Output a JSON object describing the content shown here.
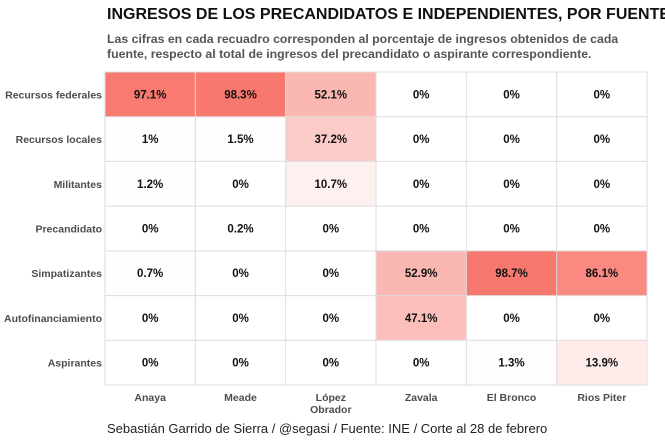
{
  "chart_data": {
    "type": "heatmap",
    "title": "INGRESOS DE LOS PRECANDIDATOS E INDEPENDIENTES, POR FUENTE",
    "subtitle": "Las cifras en cada recuadro corresponden al porcentaje de ingresos obtenidos de cada fuente, respecto al total de ingresos del precandidato o aspirante correspondiente.",
    "caption": "Sebastián Garrido de Sierra / @segasi / Fuente: INE / Corte al 28 de febrero",
    "xlabel": "",
    "ylabel": "",
    "x_categories": [
      [
        "Anaya"
      ],
      [
        "Meade"
      ],
      [
        "López",
        "Obrador"
      ],
      [
        "Zavala"
      ],
      [
        "El Bronco"
      ],
      [
        "Rios Piter"
      ]
    ],
    "y_categories": [
      "Recursos federales",
      "Recursos locales",
      "Militantes",
      "Precandidato",
      "Simpatizantes",
      "Autofinanciamiento",
      "Aspirantes"
    ],
    "values": [
      [
        97.1,
        98.3,
        52.1,
        0,
        0,
        0
      ],
      [
        1,
        1.5,
        37.2,
        0,
        0,
        0
      ],
      [
        1.2,
        0,
        10.7,
        0,
        0,
        0
      ],
      [
        0,
        0.2,
        0,
        0,
        0,
        0
      ],
      [
        0.7,
        0,
        0,
        52.9,
        98.7,
        86.1
      ],
      [
        0,
        0,
        0,
        47.1,
        0,
        0
      ],
      [
        0,
        0,
        0,
        0,
        1.3,
        13.9
      ]
    ],
    "value_suffix": "%",
    "value_range": [
      0,
      100
    ],
    "colors": {
      "low": "#ffffff",
      "high": "#f8766d",
      "grid": "#dcdcdc",
      "axis_text": "#4d4d4d",
      "cell_text": "#111111"
    }
  }
}
